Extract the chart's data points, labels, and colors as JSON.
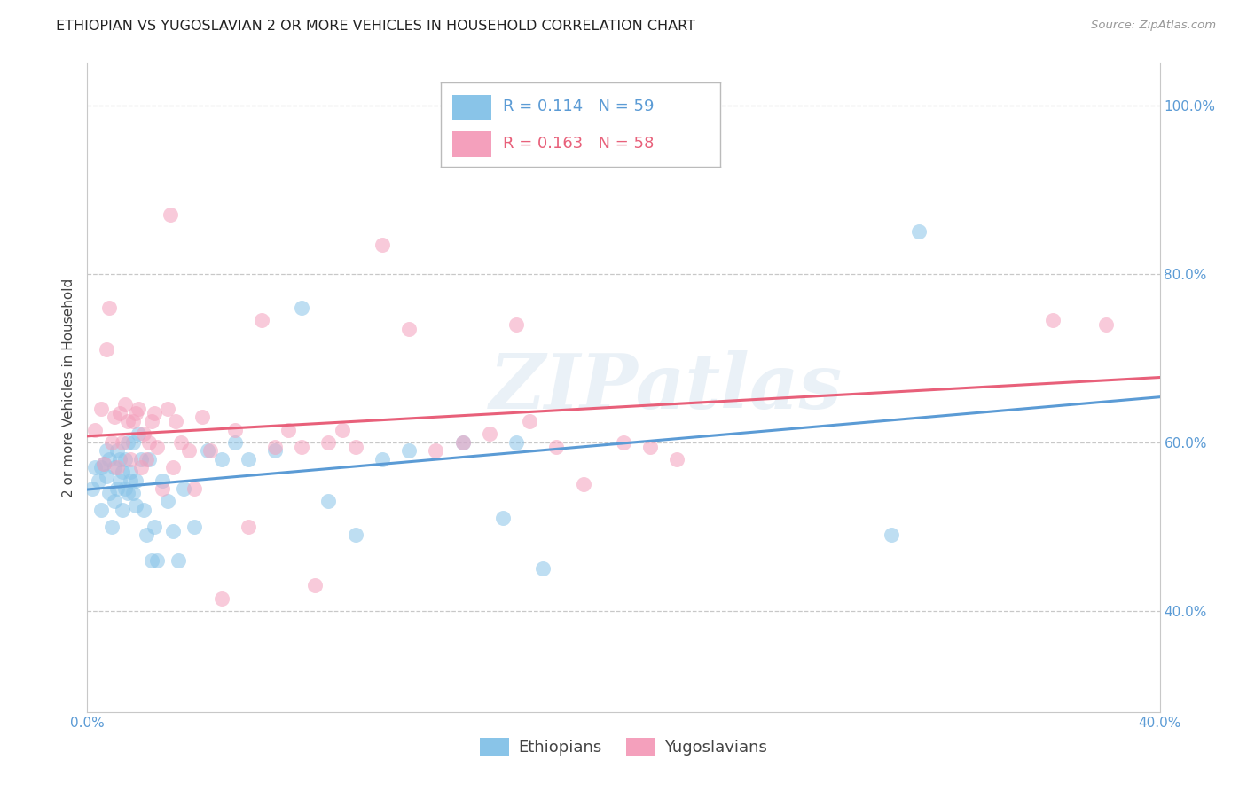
{
  "title": "ETHIOPIAN VS YUGOSLAVIAN 2 OR MORE VEHICLES IN HOUSEHOLD CORRELATION CHART",
  "source": "Source: ZipAtlas.com",
  "ylabel": "2 or more Vehicles in Household",
  "xlim": [
    0.0,
    0.4
  ],
  "ylim": [
    0.28,
    1.05
  ],
  "x_ticks": [
    0.0,
    0.05,
    0.1,
    0.15,
    0.2,
    0.25,
    0.3,
    0.35,
    0.4
  ],
  "y_ticks": [
    0.4,
    0.6,
    0.8,
    1.0
  ],
  "y_tick_labels": [
    "40.0%",
    "60.0%",
    "80.0%",
    "100.0%"
  ],
  "ethiopian_R": 0.114,
  "ethiopian_N": 59,
  "yugoslavian_R": 0.163,
  "yugoslavian_N": 58,
  "blue_color": "#89C4E8",
  "pink_color": "#F4A0BC",
  "blue_line_color": "#5B9BD5",
  "pink_line_color": "#E8607A",
  "watermark": "ZIPatlas",
  "ethiopians_x": [
    0.002,
    0.003,
    0.004,
    0.005,
    0.005,
    0.006,
    0.007,
    0.007,
    0.008,
    0.008,
    0.009,
    0.01,
    0.01,
    0.011,
    0.011,
    0.012,
    0.012,
    0.013,
    0.013,
    0.014,
    0.014,
    0.015,
    0.015,
    0.016,
    0.016,
    0.017,
    0.017,
    0.018,
    0.018,
    0.019,
    0.02,
    0.021,
    0.022,
    0.023,
    0.024,
    0.025,
    0.026,
    0.028,
    0.03,
    0.032,
    0.034,
    0.036,
    0.04,
    0.045,
    0.05,
    0.055,
    0.06,
    0.07,
    0.08,
    0.09,
    0.1,
    0.11,
    0.12,
    0.14,
    0.155,
    0.16,
    0.17,
    0.3,
    0.31
  ],
  "ethiopians_y": [
    0.545,
    0.57,
    0.555,
    0.52,
    0.57,
    0.575,
    0.56,
    0.59,
    0.54,
    0.58,
    0.5,
    0.53,
    0.57,
    0.545,
    0.59,
    0.555,
    0.58,
    0.52,
    0.565,
    0.545,
    0.58,
    0.54,
    0.6,
    0.555,
    0.565,
    0.54,
    0.6,
    0.525,
    0.555,
    0.61,
    0.58,
    0.52,
    0.49,
    0.58,
    0.46,
    0.5,
    0.46,
    0.555,
    0.53,
    0.495,
    0.46,
    0.545,
    0.5,
    0.59,
    0.58,
    0.6,
    0.58,
    0.59,
    0.76,
    0.53,
    0.49,
    0.58,
    0.59,
    0.6,
    0.51,
    0.6,
    0.45,
    0.49,
    0.85
  ],
  "yugoslavians_x": [
    0.003,
    0.005,
    0.006,
    0.007,
    0.008,
    0.009,
    0.01,
    0.011,
    0.012,
    0.013,
    0.014,
    0.015,
    0.016,
    0.017,
    0.018,
    0.019,
    0.02,
    0.021,
    0.022,
    0.023,
    0.024,
    0.025,
    0.026,
    0.028,
    0.03,
    0.031,
    0.032,
    0.033,
    0.035,
    0.038,
    0.04,
    0.043,
    0.046,
    0.05,
    0.055,
    0.06,
    0.065,
    0.07,
    0.075,
    0.08,
    0.085,
    0.09,
    0.095,
    0.1,
    0.11,
    0.12,
    0.13,
    0.14,
    0.15,
    0.16,
    0.165,
    0.175,
    0.185,
    0.2,
    0.21,
    0.22,
    0.36,
    0.38
  ],
  "yugoslavians_y": [
    0.615,
    0.64,
    0.575,
    0.71,
    0.76,
    0.6,
    0.63,
    0.57,
    0.635,
    0.6,
    0.645,
    0.625,
    0.58,
    0.625,
    0.635,
    0.64,
    0.57,
    0.61,
    0.58,
    0.6,
    0.625,
    0.635,
    0.595,
    0.545,
    0.64,
    0.87,
    0.57,
    0.625,
    0.6,
    0.59,
    0.545,
    0.63,
    0.59,
    0.415,
    0.615,
    0.5,
    0.745,
    0.595,
    0.615,
    0.595,
    0.43,
    0.6,
    0.615,
    0.595,
    0.835,
    0.735,
    0.59,
    0.6,
    0.61,
    0.74,
    0.625,
    0.595,
    0.55,
    0.6,
    0.595,
    0.58,
    0.745,
    0.74
  ]
}
